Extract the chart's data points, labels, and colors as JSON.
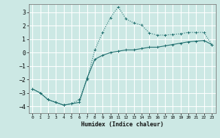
{
  "xlabel": "Humidex (Indice chaleur)",
  "ylabel": "",
  "bg_color": "#cce8e4",
  "grid_color": "#ffffff",
  "line_color": "#1a6b6b",
  "xlim": [
    -0.5,
    23.5
  ],
  "ylim": [
    -4.5,
    3.6
  ],
  "xticks": [
    0,
    1,
    2,
    3,
    4,
    5,
    6,
    7,
    8,
    9,
    10,
    11,
    12,
    13,
    14,
    15,
    16,
    17,
    18,
    19,
    20,
    21,
    22,
    23
  ],
  "yticks": [
    -4,
    -3,
    -2,
    -1,
    0,
    1,
    2,
    3
  ],
  "line1_x": [
    0,
    1,
    2,
    3,
    4,
    5,
    6,
    7,
    8,
    9,
    10,
    11,
    12,
    13,
    14,
    15,
    16,
    17,
    18,
    19,
    20,
    21,
    22,
    23
  ],
  "line1_y": [
    -2.7,
    -3.0,
    -3.5,
    -3.7,
    -3.9,
    -3.8,
    -3.7,
    -1.9,
    -0.5,
    -0.2,
    0.0,
    0.1,
    0.2,
    0.2,
    0.3,
    0.4,
    0.4,
    0.5,
    0.6,
    0.7,
    0.8,
    0.85,
    0.9,
    0.6
  ],
  "line2_x": [
    0,
    1,
    2,
    3,
    4,
    5,
    6,
    7,
    8,
    9,
    10,
    11,
    12,
    13,
    14,
    15,
    16,
    17,
    18,
    19,
    20,
    21,
    22,
    23
  ],
  "line2_y": [
    -2.7,
    -3.0,
    -3.5,
    -3.7,
    -3.9,
    -3.8,
    -3.5,
    -2.0,
    0.2,
    1.5,
    2.6,
    3.4,
    2.5,
    2.2,
    2.05,
    1.45,
    1.3,
    1.3,
    1.35,
    1.4,
    1.5,
    1.5,
    1.5,
    0.6
  ]
}
